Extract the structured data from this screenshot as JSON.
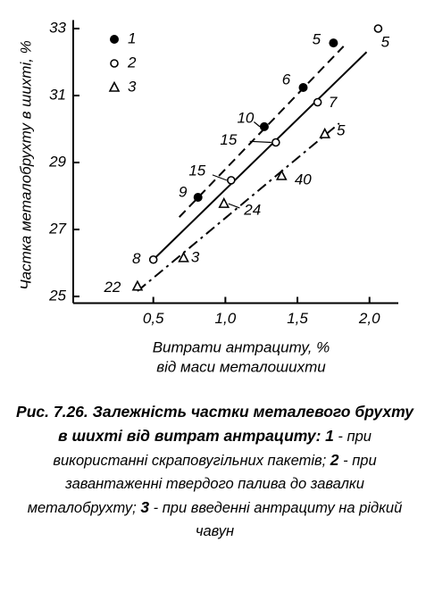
{
  "chart_data": {
    "type": "scatter",
    "y_label": "Частка металобрухту в шихті, %",
    "x_label": [
      "Витрати антрациту, %",
      "від маси металошихти"
    ],
    "xlim": [
      0,
      2.2
    ],
    "ylim": [
      24.8,
      33.2
    ],
    "xticks": [
      {
        "value": 0.5,
        "label": "0,5"
      },
      {
        "value": 1.0,
        "label": "1,0"
      },
      {
        "value": 1.5,
        "label": "1,5"
      },
      {
        "value": 2.0,
        "label": "2,0"
      }
    ],
    "yticks": [
      25,
      27,
      29,
      31,
      33
    ],
    "color": "#000000",
    "series": [
      {
        "name": "1",
        "marker": "filled-circle",
        "x": [
          1.75,
          1.54,
          1.27,
          0.81
        ],
        "values": [
          32.57,
          31.24,
          30.07,
          27.96
        ],
        "point_labels": [
          "5",
          "6",
          "10",
          "9"
        ],
        "trend": {
          "x": [
            0.68,
            1.82
          ],
          "values": [
            27.37,
            32.47
          ],
          "dash": "dashed"
        }
      },
      {
        "name": "2",
        "marker": "open-circle",
        "x": [
          2.06,
          1.64,
          1.35,
          1.04,
          0.5
        ],
        "values": [
          33.0,
          30.8,
          29.6,
          28.47,
          26.1
        ],
        "point_labels": [
          "5",
          "7",
          "15",
          "15",
          "8"
        ],
        "trend": {
          "x": [
            0.5,
            1.98
          ],
          "values": [
            26.1,
            32.3
          ],
          "dash": "solid"
        }
      },
      {
        "name": "3",
        "marker": "open-triangle",
        "x": [
          1.69,
          1.39,
          0.99,
          0.71,
          0.39
        ],
        "values": [
          29.85,
          28.6,
          27.77,
          26.15,
          25.3
        ],
        "point_labels": [
          "5",
          "40",
          "24",
          "3",
          "22"
        ],
        "trend": {
          "x": [
            0.39,
            1.79
          ],
          "values": [
            25.16,
            30.17
          ],
          "dash": "dash-dot"
        }
      }
    ]
  },
  "caption": {
    "title": "Рис. 7.26. Залежність частки металевого брухту в шихті від витрат антрациту:",
    "items": [
      {
        "num": "1",
        "text": "- при використанні скраповугільних пакетів;"
      },
      {
        "num": "2",
        "text": "- при завантаженні твердого палива до завалки металобрухту;"
      },
      {
        "num": "3",
        "text": "- при введенні антрациту на рідкий чавун"
      }
    ]
  }
}
